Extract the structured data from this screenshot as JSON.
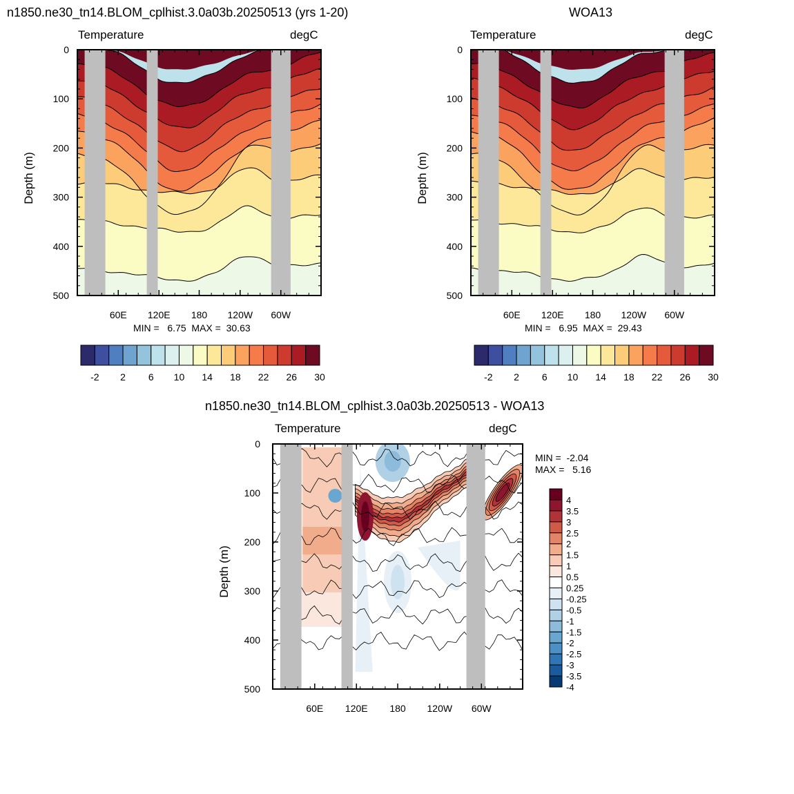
{
  "colors": {
    "land": "#bebebe",
    "temp_palette": [
      "#2c2a6a",
      "#3d4f9e",
      "#4f7fc0",
      "#6fa3d0",
      "#94c4dd",
      "#bee2ec",
      "#ddf0f0",
      "#eef8e6",
      "#fbfbc4",
      "#fde89a",
      "#fdcc79",
      "#fba35e",
      "#f57c4a",
      "#e55a3a",
      "#cd3a2e",
      "#aa1b23",
      "#6f0a23"
    ],
    "diff_palette": [
      "#063a73",
      "#1a5a9e",
      "#2f76b5",
      "#4b91c5",
      "#6aa7d0",
      "#8cbcda",
      "#afd0e5",
      "#cfe2ef",
      "#e7f0f7",
      "#ffffff",
      "#fbe7dd",
      "#f7cbb6",
      "#f1ac8c",
      "#e48466",
      "#cf5a48",
      "#b2323a",
      "#8e1530",
      "#67001f"
    ]
  },
  "chart_data": [
    {
      "type": "heatmap",
      "title": "n1850.ne30_tn14.BLOM_cplhist.3.0a03b.20250513 (yrs 1-20)",
      "left_label": "Temperature",
      "right_label": "degC",
      "ylabel": "Depth (m)",
      "xlabel": "",
      "yticks": [
        "0",
        "100",
        "200",
        "300",
        "400",
        "500"
      ],
      "xticks": [
        "60E",
        "120E",
        "180",
        "120W",
        "60W"
      ],
      "ylim": [
        500,
        0
      ],
      "stats": "MIN =   6.75  MAX =  30.63",
      "colorbar_labels": [
        "-2",
        "2",
        "6",
        "10",
        "14",
        "18",
        "22",
        "26",
        "30"
      ]
    },
    {
      "type": "heatmap",
      "title": "WOA13",
      "left_label": "Temperature",
      "right_label": "degC",
      "ylabel": "Depth (m)",
      "xlabel": "",
      "yticks": [
        "0",
        "100",
        "200",
        "300",
        "400",
        "500"
      ],
      "xticks": [
        "60E",
        "120E",
        "180",
        "120W",
        "60W"
      ],
      "ylim": [
        500,
        0
      ],
      "stats": "MIN =   6.95  MAX =  29.43",
      "colorbar_labels": [
        "-2",
        "2",
        "6",
        "10",
        "14",
        "18",
        "22",
        "26",
        "30"
      ]
    },
    {
      "type": "heatmap",
      "title": "n1850.ne30_tn14.BLOM_cplhist.3.0a03b.20250513 - WOA13",
      "left_label": "Temperature",
      "right_label": "degC",
      "ylabel": "Depth (m)",
      "xlabel": "",
      "yticks": [
        "0",
        "100",
        "200",
        "300",
        "400",
        "500"
      ],
      "xticks": [
        "60E",
        "120E",
        "180",
        "120W",
        "60W"
      ],
      "ylim": [
        500,
        0
      ],
      "stats_min": "MIN =  -2.04",
      "stats_max": "MAX =   5.16",
      "colorbar_labels": [
        "4",
        "3.5",
        "3",
        "2.5",
        "2",
        "1.5",
        "1",
        "0.5",
        "0.25",
        "-0.25",
        "-0.5",
        "-1",
        "-1.5",
        "-2",
        "-2.5",
        "-3",
        "-3.5",
        "-4"
      ]
    }
  ]
}
